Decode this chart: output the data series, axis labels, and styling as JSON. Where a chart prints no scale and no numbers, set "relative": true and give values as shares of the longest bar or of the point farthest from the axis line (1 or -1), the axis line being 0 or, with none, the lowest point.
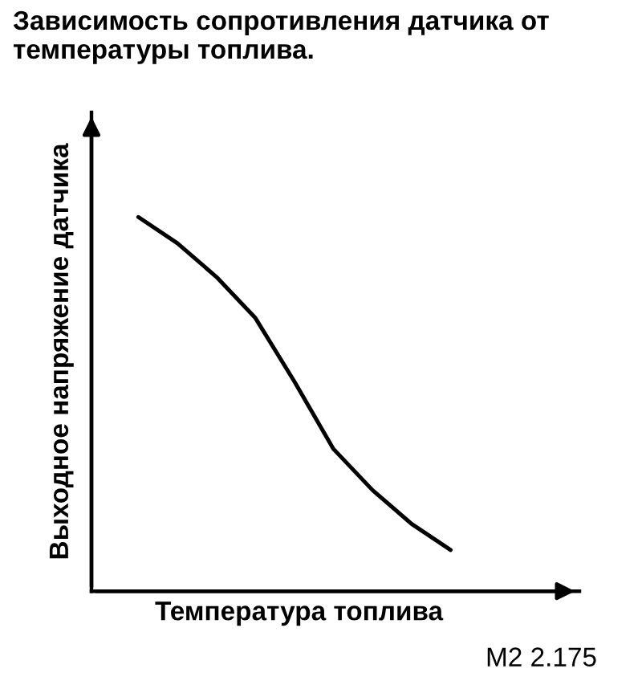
{
  "chart_data": {
    "type": "line",
    "title": "Зависимость сопротивления датчика от температуры топлива.",
    "xlabel": "Температура топлива",
    "ylabel": "Выходное напряжение датчика",
    "annotations": [
      "M2 2.175"
    ],
    "relative": true,
    "categories": [
      null,
      null,
      null,
      null,
      null,
      null,
      null,
      null,
      null
    ],
    "series": [
      {
        "color": "#000000",
        "values": [
          1.0,
          0.93,
          0.84,
          0.73,
          0.56,
          0.38,
          0.27,
          0.18,
          0.11
        ]
      }
    ],
    "grid": false,
    "legend": false,
    "marker": "none",
    "line_style": "solid"
  }
}
